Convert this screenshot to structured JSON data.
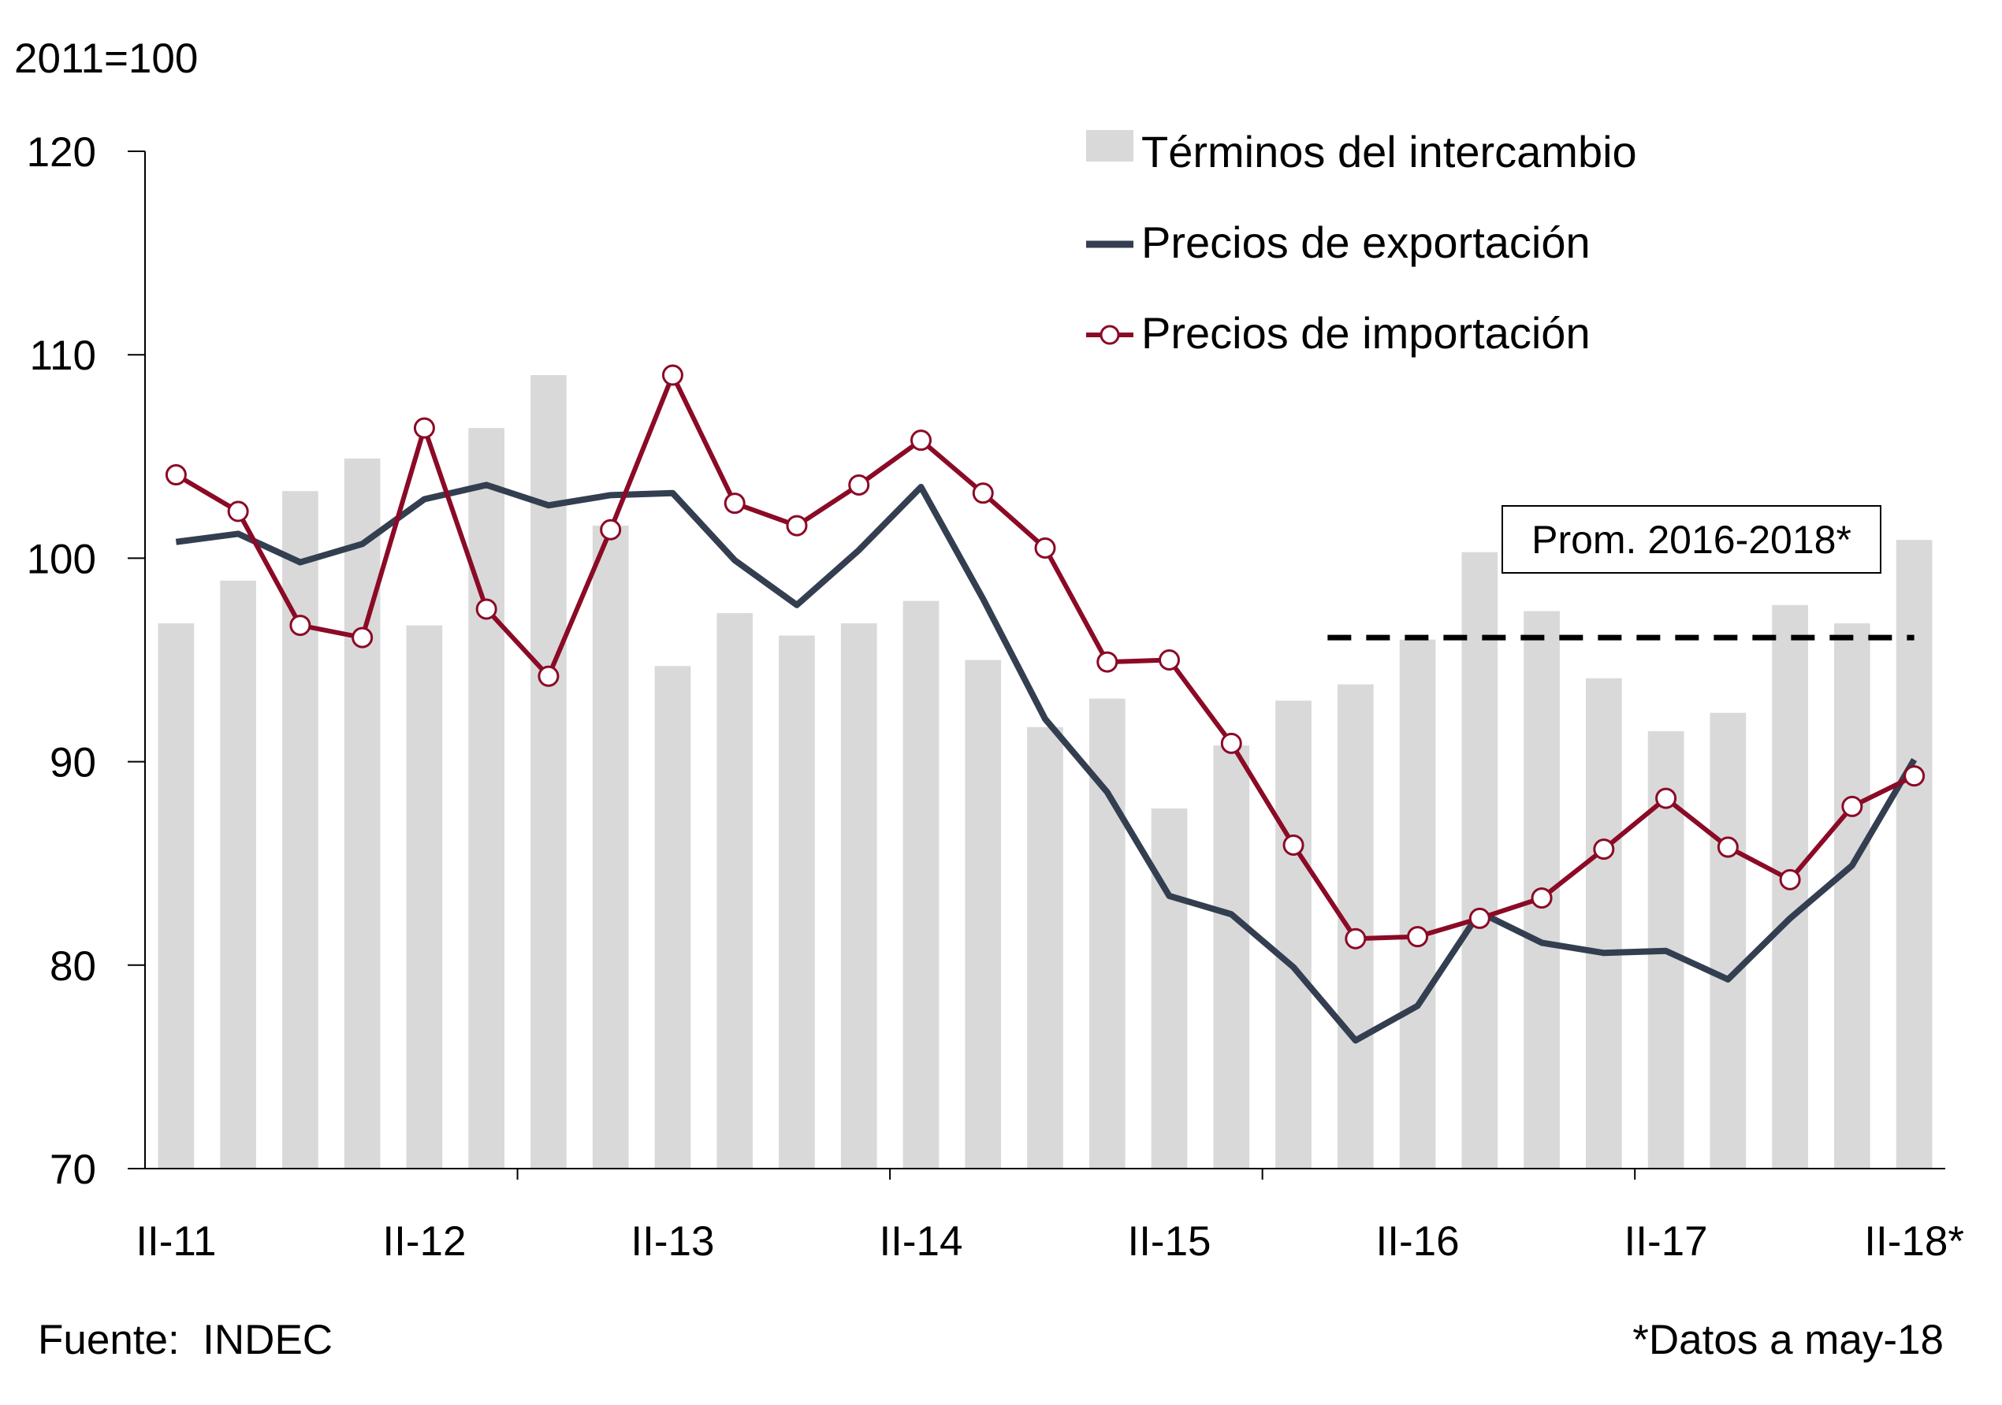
{
  "chart_data": {
    "type": "bar+line",
    "unit_label": "2011=100",
    "ylim": [
      70,
      120
    ],
    "yticks": [
      70,
      80,
      90,
      100,
      110,
      120
    ],
    "x_tick_labels": [
      "II-11",
      "II-12",
      "II-13",
      "II-14",
      "II-15",
      "II-16",
      "II-17",
      "II-18*"
    ],
    "periods": [
      "II-11",
      "III-11",
      "IV-11",
      "I-12",
      "II-12",
      "III-12",
      "IV-12",
      "I-13",
      "II-13",
      "III-13",
      "IV-13",
      "I-14",
      "II-14",
      "III-14",
      "IV-14",
      "I-15",
      "II-15",
      "III-15",
      "IV-15",
      "I-16",
      "II-16",
      "III-16",
      "IV-16",
      "I-17",
      "II-17",
      "III-17",
      "IV-17",
      "I-18",
      "II-18*"
    ],
    "series": [
      {
        "name": "Términos del intercambio",
        "kind": "bar",
        "color": "#d9d9d9",
        "values": [
          96.8,
          98.9,
          103.3,
          104.9,
          96.7,
          106.4,
          109.0,
          101.6,
          94.7,
          97.3,
          96.2,
          96.8,
          97.9,
          95.0,
          91.7,
          93.1,
          87.7,
          90.8,
          93.0,
          93.8,
          96.0,
          100.3,
          97.4,
          94.1,
          91.5,
          92.4,
          97.7,
          96.8,
          100.9
        ]
      },
      {
        "name": "Precios de exportación",
        "kind": "line",
        "color": "#333f50",
        "values": [
          100.8,
          101.2,
          99.8,
          100.7,
          102.9,
          103.6,
          102.6,
          103.1,
          103.2,
          99.9,
          97.7,
          100.4,
          103.5,
          98.0,
          92.1,
          88.5,
          83.4,
          82.5,
          79.9,
          76.3,
          78.0,
          82.6,
          81.1,
          80.6,
          80.7,
          79.3,
          82.3,
          84.9,
          90.1
        ]
      },
      {
        "name": "Precios de importación",
        "kind": "line-marker",
        "color": "#8b0a26",
        "values": [
          104.1,
          102.3,
          96.7,
          96.1,
          106.4,
          97.5,
          94.2,
          101.4,
          109.0,
          102.7,
          101.6,
          103.6,
          105.8,
          103.2,
          100.5,
          94.9,
          95.0,
          90.9,
          85.9,
          81.3,
          81.4,
          82.3,
          83.3,
          85.7,
          88.2,
          85.8,
          84.2,
          87.8,
          89.3
        ]
      }
    ],
    "reference_line": {
      "label": "Prom. 2016-2018*",
      "value": 96.1,
      "from_period": "I-16",
      "to_period": "II-18*",
      "style": "dashed",
      "color": "#000000"
    },
    "legend_position": "top-right",
    "grid": false
  },
  "source_note": "Fuente:  INDEC",
  "data_note": "*Datos a may-18"
}
